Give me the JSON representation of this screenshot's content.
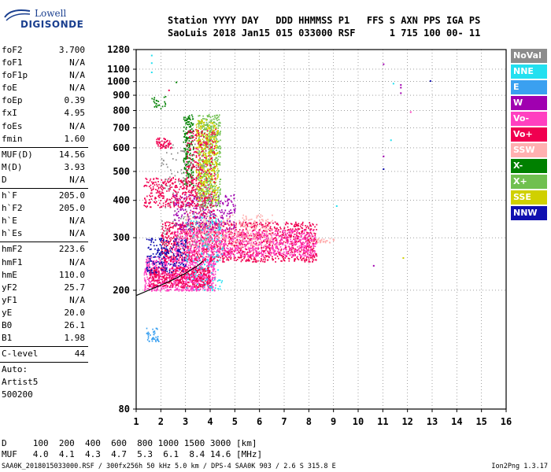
{
  "logo": {
    "line1": "Lowell",
    "line2": "DIGISONDE"
  },
  "header": {
    "row1": "Station YYYY DAY   DDD HHMMSS P1   FFS S AXN PPS IGA PS",
    "row2": "SaoLuis 2018 Jan15 015 033000 RSF      1 715 100 00- 11"
  },
  "params": [
    [
      {
        "l": "foF2",
        "v": "3.700"
      },
      {
        "l": "foF1",
        "v": "N/A"
      },
      {
        "l": "foF1p",
        "v": "N/A"
      },
      {
        "l": "foE",
        "v": "N/A"
      },
      {
        "l": "foEp",
        "v": "0.39"
      },
      {
        "l": "fxI",
        "v": "4.95"
      },
      {
        "l": "foEs",
        "v": "N/A"
      },
      {
        "l": "fmin",
        "v": "1.60"
      }
    ],
    [
      {
        "l": "MUF(D)",
        "v": "14.56"
      },
      {
        "l": "M(D)",
        "v": "3.93"
      },
      {
        "l": "D",
        "v": "N/A"
      }
    ],
    [
      {
        "l": "h`F",
        "v": "205.0"
      },
      {
        "l": "h`F2",
        "v": "205.0"
      },
      {
        "l": "h`E",
        "v": "N/A"
      },
      {
        "l": "h`Es",
        "v": "N/A"
      }
    ],
    [
      {
        "l": "hmF2",
        "v": "223.6"
      },
      {
        "l": "hmF1",
        "v": "N/A"
      },
      {
        "l": "hmE",
        "v": "110.0"
      },
      {
        "l": "yF2",
        "v": "25.7"
      },
      {
        "l": "yF1",
        "v": "N/A"
      },
      {
        "l": "yE",
        "v": "20.0"
      },
      {
        "l": "B0",
        "v": "26.1"
      },
      {
        "l": "B1",
        "v": "1.98"
      }
    ],
    [
      {
        "l": "C-level",
        "v": "44"
      }
    ],
    [
      {
        "l": "Auto:",
        "v": ""
      },
      {
        "l": "Artist5",
        "v": ""
      },
      {
        "l": "500200",
        "v": ""
      }
    ]
  ],
  "legend": [
    {
      "label": "NoVal",
      "color": "#8c8c8c"
    },
    {
      "label": "NNE",
      "color": "#22e0f0"
    },
    {
      "label": "E",
      "color": "#3aa0f0"
    },
    {
      "label": "W",
      "color": "#a000b0"
    },
    {
      "label": "Vo-",
      "color": "#ff40c0"
    },
    {
      "label": "Vo+",
      "color": "#f00050"
    },
    {
      "label": "SSW",
      "color": "#ffb0b0"
    },
    {
      "label": "X-",
      "color": "#008000"
    },
    {
      "label": "X+",
      "color": "#70c050"
    },
    {
      "label": "SSE",
      "color": "#d0d000"
    },
    {
      "label": "NNW",
      "color": "#1010b0"
    }
  ],
  "chart_data": {
    "type": "scatter",
    "xlim": [
      1,
      16
    ],
    "ylim": [
      80,
      1280
    ],
    "xticks": [
      "1",
      "2",
      "3",
      "4",
      "5",
      "6",
      "7",
      "8",
      "9",
      "10",
      "11",
      "12",
      "13",
      "14",
      "15",
      "16"
    ],
    "yticks": [
      "80",
      "200",
      "300",
      "400",
      "500",
      "600",
      "700",
      "800",
      "900",
      "1000",
      "1100",
      "1280"
    ],
    "yscale": "log",
    "grid": true,
    "clusters": [
      {
        "x": [
          1.3,
          4.2
        ],
        "y": [
          200,
          260
        ],
        "n": 900,
        "color": "#ff40c0"
      },
      {
        "x": [
          1.5,
          4.0
        ],
        "y": [
          205,
          240
        ],
        "n": 400,
        "color": "#f00050"
      },
      {
        "x": [
          2.0,
          8.3
        ],
        "y": [
          250,
          340
        ],
        "n": 1500,
        "color": "#f00050"
      },
      {
        "x": [
          2.5,
          8.3
        ],
        "y": [
          260,
          320
        ],
        "n": 800,
        "color": "#ff40c0"
      },
      {
        "x": [
          3.0,
          6.5
        ],
        "y": [
          280,
          360
        ],
        "n": 300,
        "color": "#ffb0b0"
      },
      {
        "x": [
          8.3,
          9.0
        ],
        "y": [
          290,
          300
        ],
        "n": 30,
        "color": "#ffb0b0"
      },
      {
        "x": [
          2.5,
          5.0
        ],
        "y": [
          320,
          420
        ],
        "n": 300,
        "color": "#a000b0"
      },
      {
        "x": [
          3.5,
          4.4
        ],
        "y": [
          380,
          780
        ],
        "n": 500,
        "color": "#70c050"
      },
      {
        "x": [
          3.4,
          4.3
        ],
        "y": [
          400,
          750
        ],
        "n": 400,
        "color": "#d0d000"
      },
      {
        "x": [
          2.9,
          3.3
        ],
        "y": [
          450,
          780
        ],
        "n": 200,
        "color": "#008000"
      },
      {
        "x": [
          3.0,
          4.2
        ],
        "y": [
          350,
          700
        ],
        "n": 300,
        "color": "#f00050"
      },
      {
        "x": [
          1.3,
          3.5
        ],
        "y": [
          380,
          480
        ],
        "n": 300,
        "color": "#f00050"
      },
      {
        "x": [
          1.8,
          2.4
        ],
        "y": [
          600,
          650
        ],
        "n": 60,
        "color": "#f00050"
      },
      {
        "x": [
          1.5,
          2.2
        ],
        "y": [
          800,
          900
        ],
        "n": 25,
        "color": "#008000"
      },
      {
        "x": [
          1.4,
          1.9
        ],
        "y": [
          135,
          150
        ],
        "n": 40,
        "color": "#3aa0f0"
      },
      {
        "x": [
          1.4,
          3.0
        ],
        "y": [
          230,
          300
        ],
        "n": 200,
        "color": "#1010b0"
      },
      {
        "x": [
          3.0,
          4.5
        ],
        "y": [
          200,
          360
        ],
        "n": 150,
        "color": "#22e0f0"
      },
      {
        "x": [
          2.0,
          4.0
        ],
        "y": [
          280,
          620
        ],
        "n": 150,
        "color": "#8c8c8c"
      }
    ],
    "points": [
      {
        "x": 11.0,
        "y": 1150,
        "color": "#a000b0"
      },
      {
        "x": 11.7,
        "y": 980,
        "color": "#a000b0"
      },
      {
        "x": 11.7,
        "y": 960,
        "color": "#a000b0"
      },
      {
        "x": 11.7,
        "y": 920,
        "color": "#a000b0"
      },
      {
        "x": 12.9,
        "y": 1010,
        "color": "#1010b0"
      },
      {
        "x": 12.1,
        "y": 795,
        "color": "#ff40c0"
      },
      {
        "x": 11.3,
        "y": 640,
        "color": "#22e0f0"
      },
      {
        "x": 11.0,
        "y": 565,
        "color": "#a000b0"
      },
      {
        "x": 11.0,
        "y": 512,
        "color": "#1010b0"
      },
      {
        "x": 11.4,
        "y": 990,
        "color": "#22e0f0"
      },
      {
        "x": 10.6,
        "y": 243,
        "color": "#a000b0"
      },
      {
        "x": 11.8,
        "y": 258,
        "color": "#d0d000"
      },
      {
        "x": 1.6,
        "y": 1230,
        "color": "#22e0f0"
      },
      {
        "x": 1.6,
        "y": 1160,
        "color": "#22e0f0"
      },
      {
        "x": 1.6,
        "y": 1080,
        "color": "#22e0f0"
      },
      {
        "x": 2.3,
        "y": 940,
        "color": "#f00050"
      },
      {
        "x": 2.6,
        "y": 1000,
        "color": "#008000"
      },
      {
        "x": 9.1,
        "y": 385,
        "color": "#22e0f0"
      }
    ],
    "trace": {
      "x": [
        1.0,
        1.5,
        2.0,
        2.5,
        3.0,
        3.5,
        3.7
      ],
      "y": [
        192,
        200,
        208,
        217,
        228,
        242,
        250
      ]
    }
  },
  "bottom": {
    "row1": "D     100  200  400  600  800 1000 1500 3000 [km]",
    "row2": "MUF   4.0  4.1  4.3  4.7  5.3  6.1  8.4 14.6 [MHz]"
  },
  "footer": "SAA0K_2018015033000.RSF / 300fx256h 50 kHz 5.0 km / DPS-4 SAA0K 903 / 2.6 S 315.8 E",
  "version": "Ion2Png 1.3.17"
}
